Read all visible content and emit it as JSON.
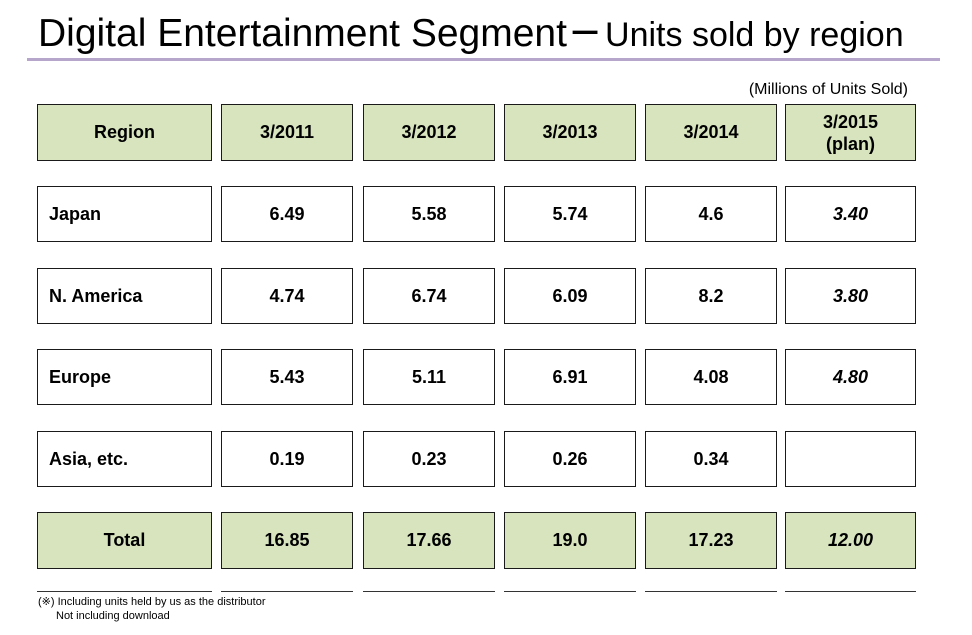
{
  "colors": {
    "header_fill": "#d7e4bd",
    "title_rule": "#b7a6cc",
    "border": "#1a1a1a",
    "text": "#000000"
  },
  "chart_data": {
    "type": "table",
    "title": "Digital Entertainment Segment",
    "title_separator": "─",
    "subtitle": "Units sold by region",
    "unit_label": "(Millions of Units Sold)",
    "columns": [
      "Region",
      "3/2011",
      "3/2012",
      "3/2013",
      "3/2014",
      "3/2015\n(plan)"
    ],
    "rows": [
      [
        "Japan",
        "6.49",
        "5.58",
        "5.74",
        "4.6",
        "3.40"
      ],
      [
        "N. America",
        "4.74",
        "6.74",
        "6.09",
        "8.2",
        "3.80"
      ],
      [
        "Europe",
        "5.43",
        "5.11",
        "6.91",
        "4.08",
        "4.80"
      ],
      [
        "Asia, etc.",
        "0.19",
        "0.23",
        "0.26",
        "0.34",
        ""
      ],
      [
        "Total",
        "16.85",
        "17.66",
        "19.0",
        "17.23",
        "12.00"
      ]
    ]
  },
  "footnotes": [
    "(※) Including units held by us as the distributor",
    "Not including download"
  ]
}
